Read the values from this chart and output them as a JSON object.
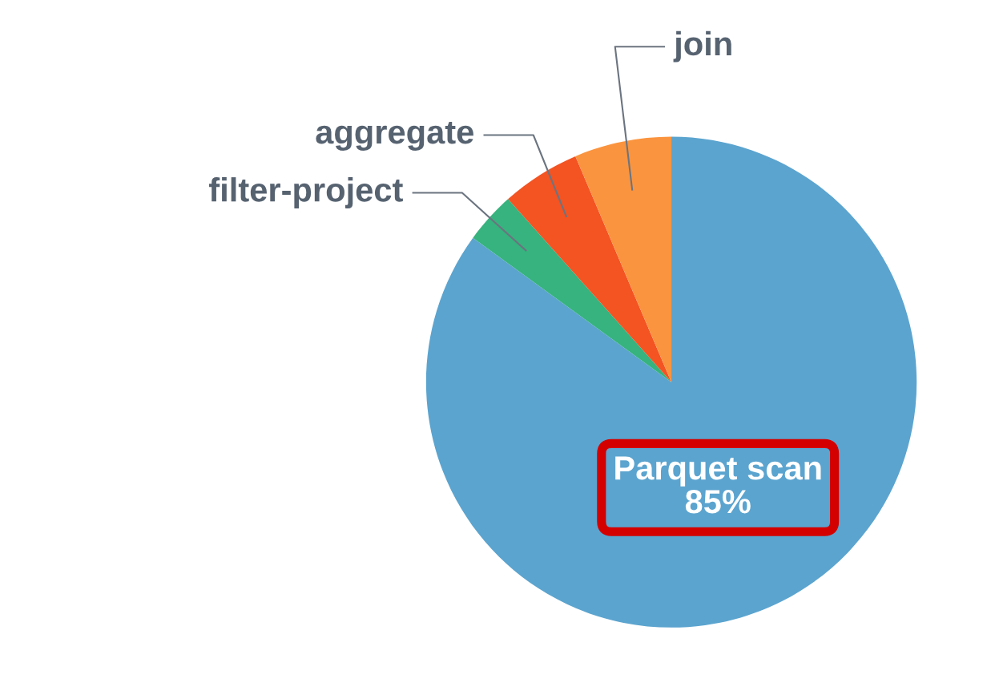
{
  "chart_data": {
    "type": "pie",
    "categories": [
      "Parquet scan",
      "filter-project",
      "aggregate",
      "join"
    ],
    "values": [
      85,
      3.4,
      5.2,
      6.4
    ],
    "colors": [
      "#5ba4cf",
      "#36b37e",
      "#f45322",
      "#fb943e"
    ],
    "value_labels": [
      "85%",
      null,
      null,
      null
    ],
    "legend": false
  }
}
